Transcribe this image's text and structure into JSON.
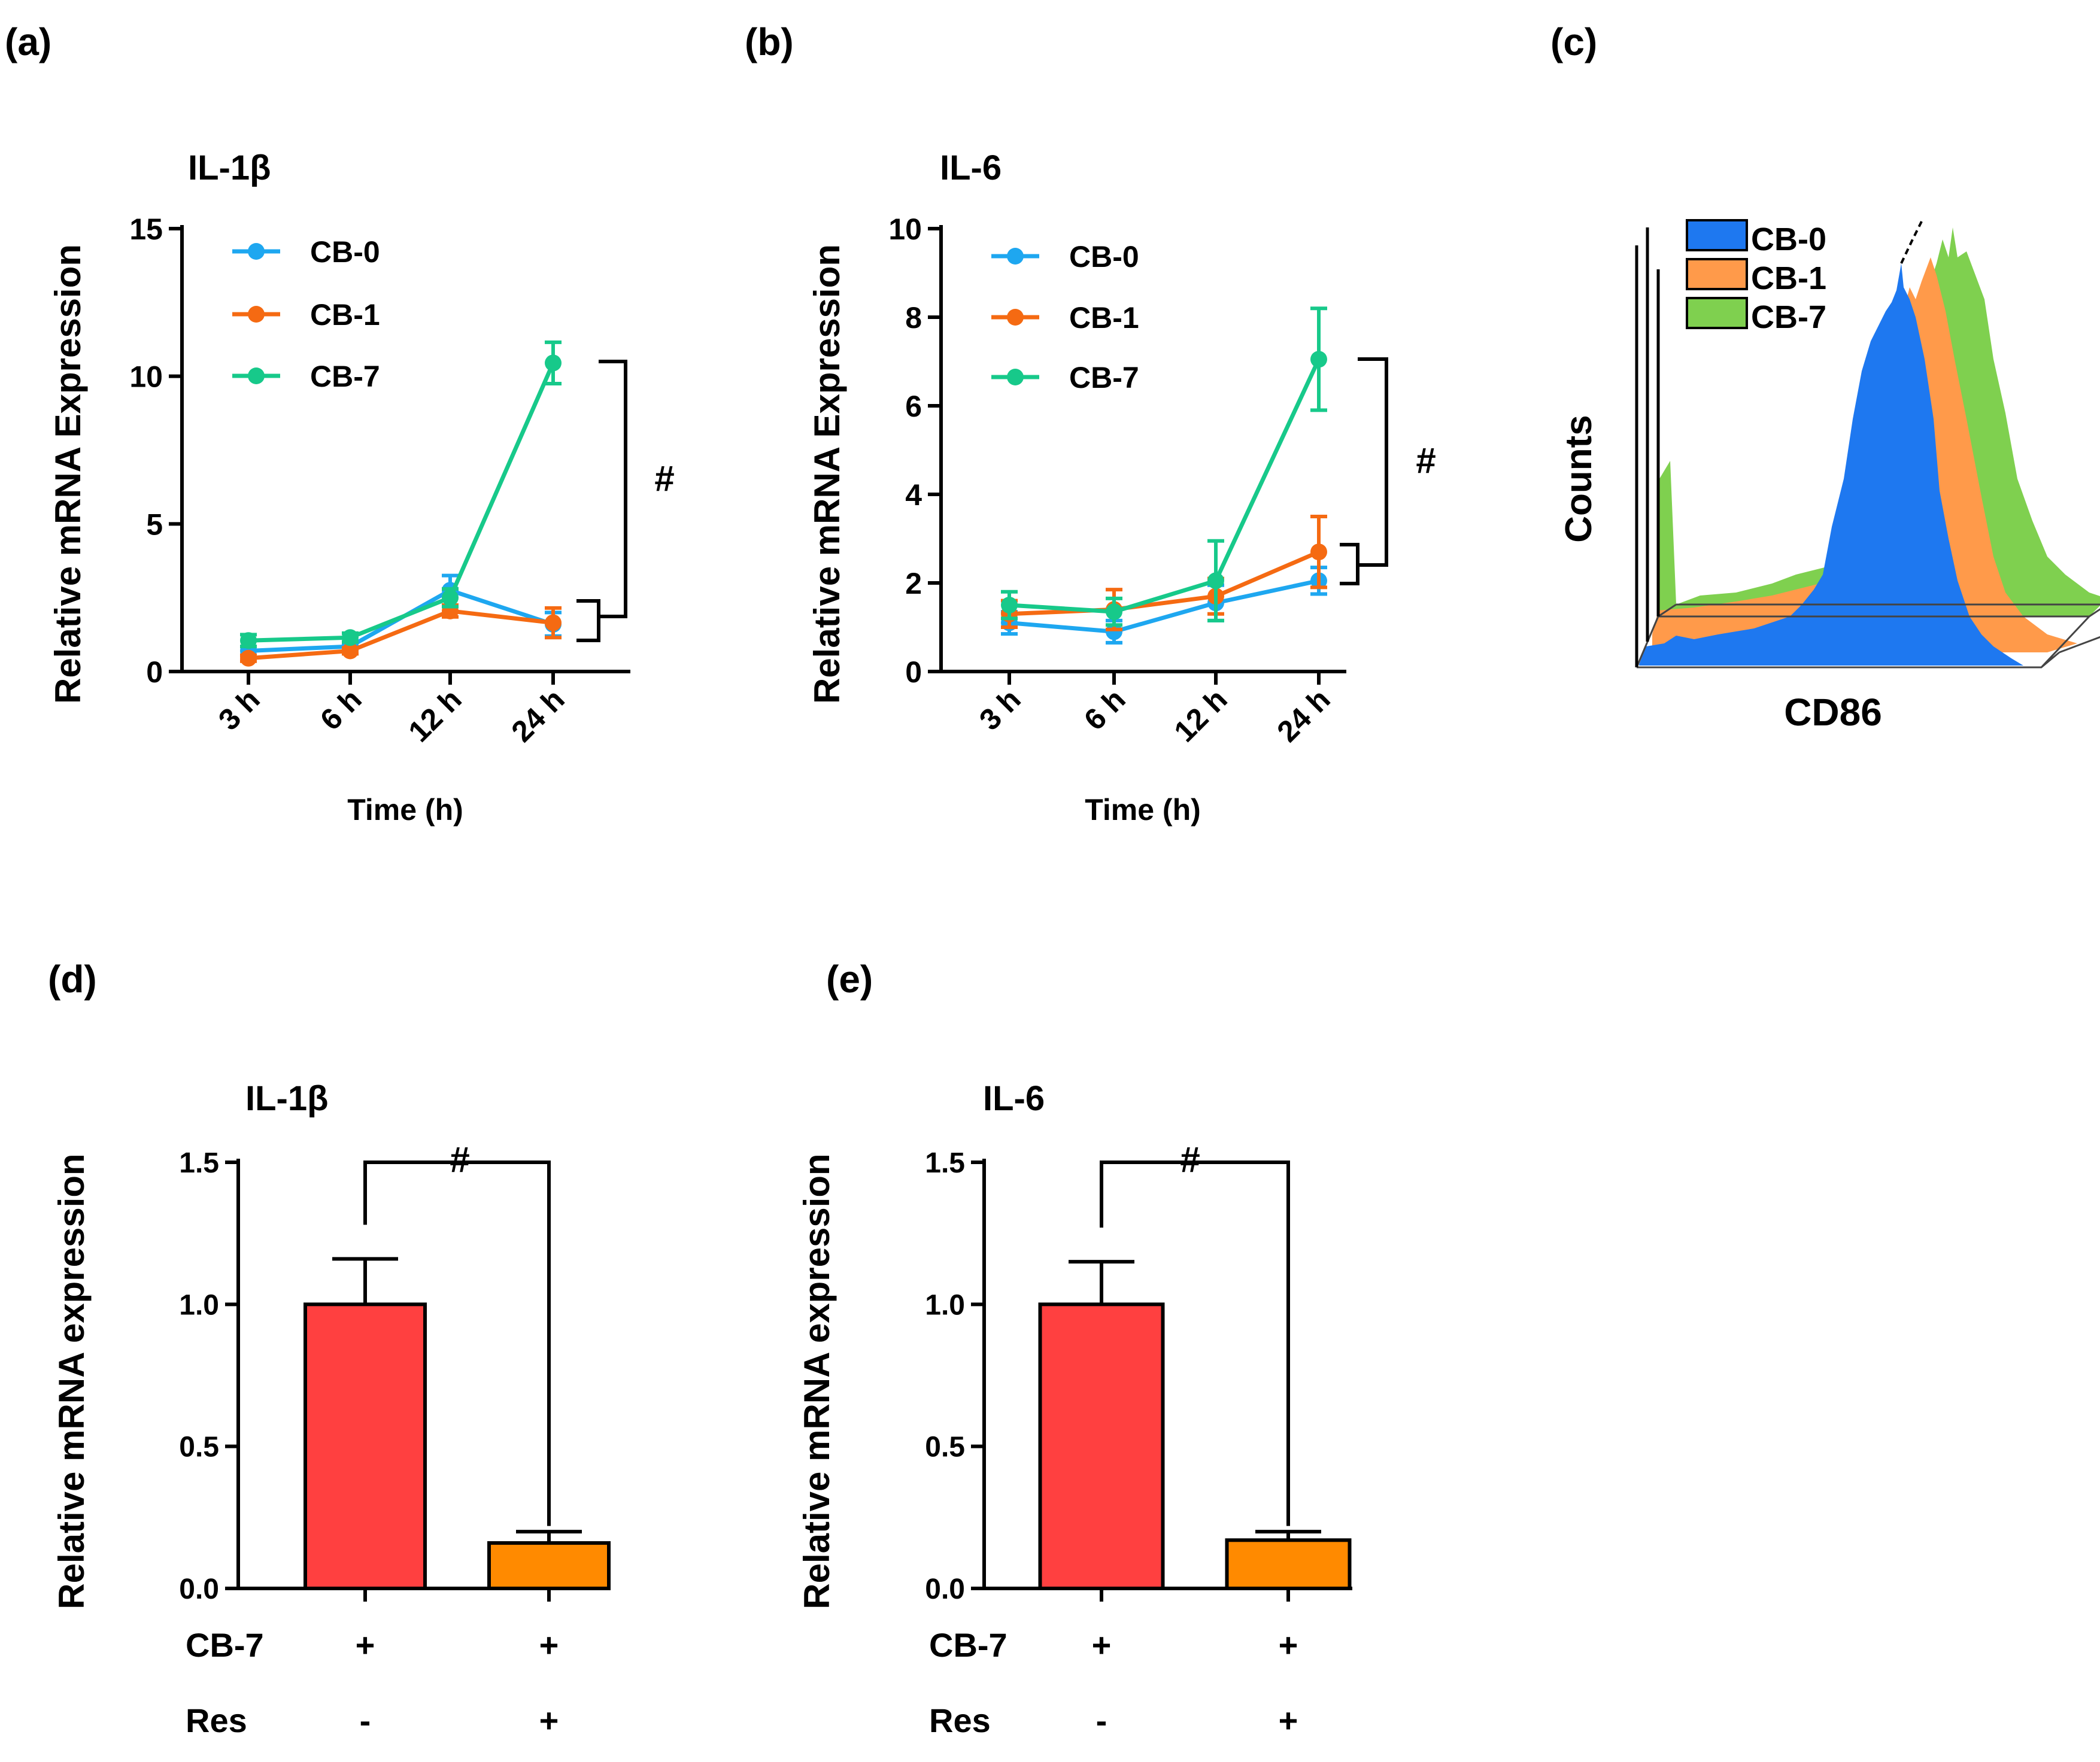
{
  "colors": {
    "cb0": "#1ea7f0",
    "cb1": "#f56a12",
    "cb7": "#17c98a",
    "red_bar": "#ff4040",
    "orange_bar": "#ff8a00",
    "hist_cb0": "#1e78f0",
    "hist_cb1": "#ff9a4a",
    "hist_cb7": "#7fd04f"
  },
  "chart_data": [
    {
      "id": "a",
      "panel_label": "(a)",
      "type": "line",
      "title": "IL-1β",
      "xlabel": "Time (h)",
      "ylabel": "Relative mRNA Expression",
      "categories": [
        "3 h",
        "6 h",
        "12 h",
        "24 h"
      ],
      "ylim": [
        0,
        15
      ],
      "yticks": [
        "0",
        "5",
        "10",
        "15"
      ],
      "series": [
        {
          "name": "CB-0",
          "color": "#1ea7f0",
          "values": [
            0.7,
            0.85,
            2.75,
            1.6
          ],
          "err": [
            0.15,
            0.1,
            0.5,
            0.4
          ]
        },
        {
          "name": "CB-1",
          "color": "#f56a12",
          "values": [
            0.45,
            0.7,
            2.05,
            1.65
          ],
          "err": [
            0.1,
            0.1,
            0.2,
            0.5
          ]
        },
        {
          "name": "CB-7",
          "color": "#17c98a",
          "values": [
            1.05,
            1.15,
            2.5,
            10.45
          ],
          "err": [
            0.2,
            0.15,
            0.3,
            0.7
          ]
        }
      ],
      "significance": "#"
    },
    {
      "id": "b",
      "panel_label": "(b)",
      "type": "line",
      "title": "IL-6",
      "xlabel": "Time (h)",
      "ylabel": "Relative mRNA Expression",
      "categories": [
        "3 h",
        "6 h",
        "12 h",
        "24 h"
      ],
      "ylim": [
        0,
        10
      ],
      "yticks": [
        "0",
        "2",
        "4",
        "6",
        "8",
        "10"
      ],
      "series": [
        {
          "name": "CB-0",
          "color": "#1ea7f0",
          "values": [
            1.1,
            0.9,
            1.55,
            2.05
          ],
          "err": [
            0.25,
            0.25,
            0.4,
            0.3
          ]
        },
        {
          "name": "CB-1",
          "color": "#f56a12",
          "values": [
            1.3,
            1.4,
            1.7,
            2.7
          ],
          "err": [
            0.3,
            0.45,
            0.4,
            0.8
          ]
        },
        {
          "name": "CB-7",
          "color": "#17c98a",
          "values": [
            1.5,
            1.35,
            2.05,
            7.05
          ],
          "err": [
            0.3,
            0.3,
            0.9,
            1.15
          ]
        }
      ],
      "significance": "#"
    },
    {
      "id": "c",
      "panel_label": "(c)",
      "type": "histogram-overlay",
      "xlabel": "CD86",
      "ylabel": "Counts",
      "legend": [
        {
          "name": "CB-0",
          "color": "#1e78f0"
        },
        {
          "name": "CB-1",
          "color": "#ff9a4a"
        },
        {
          "name": "CB-7",
          "color": "#7fd04f"
        }
      ]
    },
    {
      "id": "d",
      "panel_label": "(d)",
      "type": "bar",
      "title": "IL-1β",
      "ylabel": "Relative mRNA expression",
      "ylim": [
        0,
        1.5
      ],
      "yticks": [
        "0.0",
        "0.5",
        "1.0",
        "1.5"
      ],
      "values": [
        1.0,
        0.16
      ],
      "err": [
        0.16,
        0.04
      ],
      "colors": [
        "#ff4040",
        "#ff8a00"
      ],
      "conditions": [
        {
          "label": "CB-7",
          "marks": [
            "+",
            "+"
          ]
        },
        {
          "label": "Res",
          "marks": [
            "-",
            "+"
          ]
        }
      ],
      "significance": "#"
    },
    {
      "id": "e",
      "panel_label": "(e)",
      "type": "bar",
      "title": "IL-6",
      "ylabel": "Relative mRNA expression",
      "ylim": [
        0,
        1.5
      ],
      "yticks": [
        "0.0",
        "0.5",
        "1.0",
        "1.5"
      ],
      "values": [
        1.0,
        0.17
      ],
      "err": [
        0.15,
        0.03
      ],
      "colors": [
        "#ff4040",
        "#ff8a00"
      ],
      "conditions": [
        {
          "label": "CB-7",
          "marks": [
            "+",
            "+"
          ]
        },
        {
          "label": "Res",
          "marks": [
            "-",
            "+"
          ]
        }
      ],
      "significance": "#"
    }
  ]
}
